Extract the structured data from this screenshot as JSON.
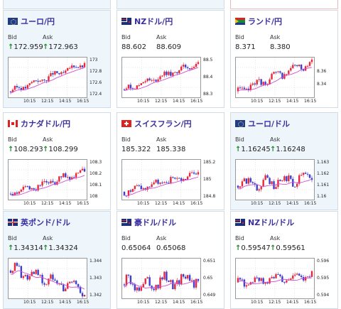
{
  "colors": {
    "up": "#e8273a",
    "down": "#3b3fcf",
    "ma": "#d24cd2",
    "grid": "#cfcfcf",
    "arrow_up": "#1a8a2a"
  },
  "labels": {
    "bid": "Bid",
    "ask": "Ask",
    "arrow": "↑"
  },
  "cards": [
    {
      "name": "ユーロ/円",
      "flag": "eu",
      "bid": "172.959",
      "ask": "172.963",
      "bid_arrow": true,
      "ask_arrow": true,
      "highlight": true,
      "yticks": [
        "173",
        "172.8",
        "172.6",
        "172.4"
      ],
      "xticks": [
        "10:15",
        "12:15",
        "14:15",
        "16:15"
      ]
    },
    {
      "name": "NZドル/円",
      "flag": "nz",
      "bid": "88.602",
      "ask": "88.609",
      "bid_arrow": false,
      "ask_arrow": false,
      "highlight": false,
      "yticks": [
        "88.5",
        "88.4",
        "88.3"
      ],
      "xticks": [
        "10:15",
        "12:15",
        "14:15",
        "16:15"
      ]
    },
    {
      "name": "ランド/円",
      "flag": "za",
      "bid": "8.371",
      "ask": "8.380",
      "bid_arrow": false,
      "ask_arrow": false,
      "highlight": false,
      "yticks": [
        "8.36",
        "8.34"
      ],
      "xticks": [
        "10:15",
        "12:15",
        "14:15",
        "16:15"
      ]
    },
    {
      "name": "カナダドル/円",
      "flag": "ca",
      "bid": "108.293",
      "ask": "108.299",
      "bid_arrow": true,
      "ask_arrow": true,
      "highlight": false,
      "yticks": [
        "108.3",
        "108.2",
        "108.1",
        "108"
      ],
      "xticks": [
        "10:15",
        "12:15",
        "14:15",
        "16:15"
      ]
    },
    {
      "name": "スイスフラン/円",
      "flag": "ch",
      "bid": "185.322",
      "ask": "185.338",
      "bid_arrow": false,
      "ask_arrow": false,
      "highlight": false,
      "yticks": [
        "185.2",
        "185",
        "184.8"
      ],
      "xticks": [
        "10:15",
        "12:15",
        "14:15",
        "16:15"
      ]
    },
    {
      "name": "ユーロ/ドル",
      "flag": "eu",
      "bid": "1.16245",
      "ask": "1.16248",
      "bid_arrow": true,
      "ask_arrow": true,
      "highlight": true,
      "yticks": [
        "1.163",
        "1.162",
        "1.161",
        "1.16"
      ],
      "xticks": [
        "10:15",
        "12:15",
        "14:15",
        "16:15"
      ]
    },
    {
      "name": "英ポンド/ドル",
      "flag": "gb",
      "bid": "1.34314",
      "ask": "1.34324",
      "bid_arrow": true,
      "ask_arrow": true,
      "highlight": true,
      "yticks": [
        "1.344",
        "1.343",
        "1.342"
      ],
      "xticks": [
        "10:15",
        "12:15",
        "14:15",
        "16:15"
      ]
    },
    {
      "name": "豪ドル/ドル",
      "flag": "au",
      "bid": "0.65064",
      "ask": "0.65068",
      "bid_arrow": false,
      "ask_arrow": false,
      "highlight": false,
      "yticks": [
        "0.651",
        "0.65",
        "0.649"
      ],
      "xticks": [
        "10:15",
        "12:15",
        "14:15",
        "16:15"
      ]
    },
    {
      "name": "NZドル/ドル",
      "flag": "nz",
      "bid": "0.59547",
      "ask": "0.59561",
      "bid_arrow": true,
      "ask_arrow": true,
      "highlight": false,
      "yticks": [
        "0.596",
        "0.595",
        "0.594"
      ],
      "xticks": [
        "10:15",
        "12:15",
        "14:15",
        "16:15"
      ]
    }
  ]
}
